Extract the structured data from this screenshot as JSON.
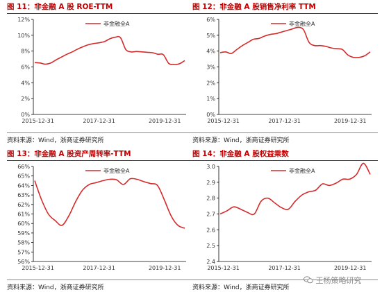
{
  "chart_data": [
    {
      "type": "line",
      "title": "图 11：非金融 A 股 ROE-TTM",
      "source": "资料来源：Wind，浙商证券研究所",
      "series": [
        {
          "name": "非金融全A",
          "values": [
            6.55,
            6.5,
            6.35,
            6.5,
            6.9,
            7.25,
            7.6,
            7.9,
            8.25,
            8.55,
            8.8,
            8.95,
            9.05,
            9.2,
            9.55,
            9.75,
            9.7,
            8.2,
            7.9,
            7.95,
            7.9,
            7.85,
            7.8,
            7.6,
            7.55,
            6.45,
            6.3,
            6.4,
            6.8
          ]
        }
      ],
      "x_ticks": [
        "2015-12-31",
        "2017-12-31",
        "2019-12-31"
      ],
      "ylim": [
        0,
        12
      ],
      "yticks": [
        0,
        2,
        4,
        6,
        8,
        10,
        12
      ],
      "yformat": "%",
      "color": "#d42a2a"
    },
    {
      "type": "line",
      "title": "图 12：非金融 A 股销售净利率 TTM",
      "source": "资料来源：Wind，浙商证券研究所",
      "series": [
        {
          "name": "非金融全A",
          "values": [
            3.9,
            3.95,
            3.85,
            4.1,
            4.35,
            4.55,
            4.75,
            4.8,
            4.95,
            5.05,
            5.1,
            5.2,
            5.3,
            5.4,
            5.5,
            5.35,
            4.55,
            4.35,
            4.35,
            4.3,
            4.2,
            4.15,
            4.1,
            3.75,
            3.6,
            3.6,
            3.7,
            3.95
          ]
        }
      ],
      "x_ticks": [
        "2015-12-31",
        "2017-12-31",
        "2019-12-31"
      ],
      "ylim": [
        0,
        6
      ],
      "yticks": [
        0,
        1,
        2,
        3,
        4,
        5,
        6
      ],
      "yformat": "%",
      "color": "#d42a2a"
    },
    {
      "type": "line",
      "title": "图 13：非金融 A 股资产周转率-TTM",
      "source": "资料来源：Wind，浙商证券研究所",
      "series": [
        {
          "name": "非金融全A",
          "values": [
            64.5,
            62.5,
            61.0,
            60.3,
            59.8,
            60.8,
            62.3,
            63.5,
            64.1,
            64.3,
            64.5,
            64.65,
            64.6,
            64.1,
            64.7,
            64.65,
            64.4,
            64.2,
            64.0,
            62.5,
            60.8,
            59.8,
            59.5
          ]
        }
      ],
      "x_ticks": [
        "2015-12-31",
        "2017-12-31",
        "2019-12-31"
      ],
      "ylim": [
        56,
        66
      ],
      "yticks": [
        56,
        57,
        58,
        59,
        60,
        61,
        62,
        63,
        64,
        65,
        66
      ],
      "yformat": "%",
      "color": "#d42a2a"
    },
    {
      "type": "line",
      "title": "图 14：非金融 A 股权益乘数",
      "source": "资料来源：Wind，浙商证券研究所",
      "series": [
        {
          "name": "非金融全A",
          "values": [
            2.7,
            2.72,
            2.745,
            2.73,
            2.71,
            2.7,
            2.78,
            2.8,
            2.77,
            2.74,
            2.73,
            2.78,
            2.82,
            2.84,
            2.85,
            2.89,
            2.88,
            2.895,
            2.92,
            2.92,
            2.95,
            3.02,
            2.95
          ]
        }
      ],
      "x_ticks": [
        "2015-12-31",
        "2017-12-31",
        "2019-12-31"
      ],
      "ylim": [
        2.4,
        3.0
      ],
      "yticks": [
        2.4,
        2.5,
        2.6,
        2.7,
        2.8,
        2.9,
        3.0
      ],
      "yformat": "dec1",
      "color": "#d42a2a"
    }
  ],
  "watermark": "王杨策略研究",
  "watermark_icon": "wechat-icon"
}
